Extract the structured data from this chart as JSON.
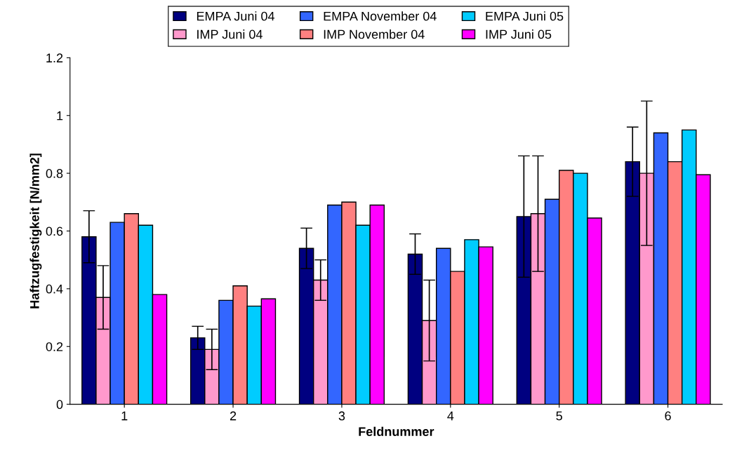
{
  "chart_data": {
    "type": "bar",
    "xlabel": "Feldnummer",
    "ylabel": "Haftzugfestigkeit [N/mm2]",
    "categories": [
      "1",
      "2",
      "3",
      "4",
      "5",
      "6"
    ],
    "series": [
      {
        "name": "EMPA Juni 04",
        "color": "#000080",
        "values": [
          0.58,
          0.23,
          0.54,
          0.52,
          0.65,
          0.84
        ],
        "errors": [
          0.09,
          0.04,
          0.07,
          0.07,
          0.21,
          0.12
        ]
      },
      {
        "name": "IMP Juni 04",
        "color": "#ff99cc",
        "values": [
          0.37,
          0.19,
          0.43,
          0.29,
          0.66,
          0.8
        ],
        "errors": [
          0.11,
          0.07,
          0.07,
          0.14,
          0.2,
          0.25
        ]
      },
      {
        "name": "EMPA November 04",
        "color": "#3366ff",
        "values": [
          0.63,
          0.36,
          0.69,
          0.54,
          0.71,
          0.94
        ]
      },
      {
        "name": "IMP November 04",
        "color": "#ff8080",
        "values": [
          0.66,
          0.41,
          0.7,
          0.46,
          0.81,
          0.84
        ]
      },
      {
        "name": "EMPA Juni 05",
        "color": "#00ccff",
        "values": [
          0.62,
          0.34,
          0.62,
          0.57,
          0.8,
          0.95
        ]
      },
      {
        "name": "IMP Juni 05",
        "color": "#ff00ff",
        "values": [
          0.38,
          0.365,
          0.69,
          0.545,
          0.645,
          0.795
        ]
      }
    ],
    "ylim": [
      0,
      1.2
    ],
    "yticks": [
      0,
      0.2,
      0.4,
      0.6,
      0.8,
      1,
      1.2
    ],
    "grid": false,
    "legend": "top"
  }
}
